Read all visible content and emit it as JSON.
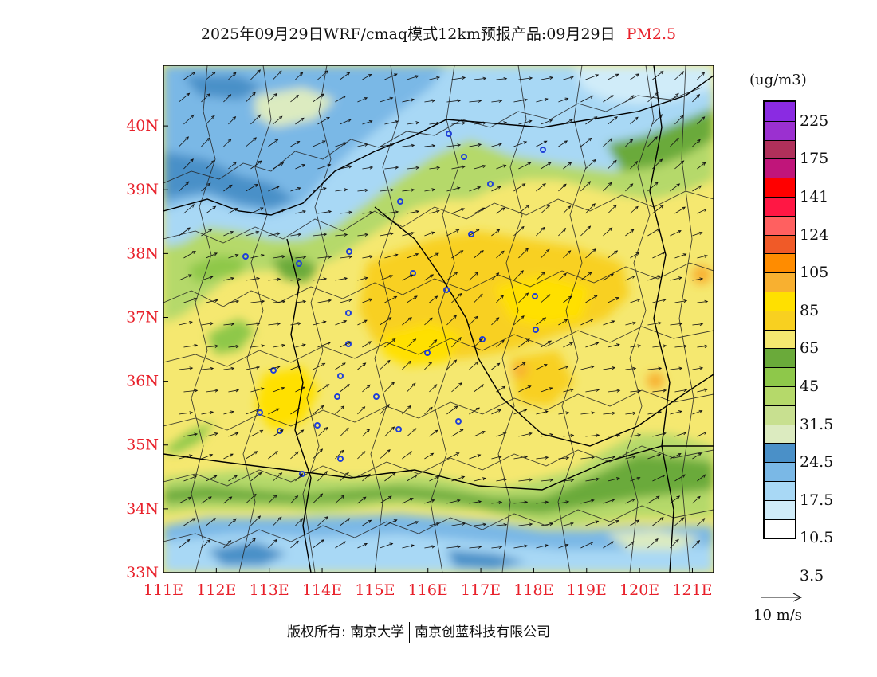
{
  "header": {
    "title": "2025年09月29日WRF/cmaq模式12km预报产品:09月29日",
    "pollutant": "PM2.5"
  },
  "map": {
    "lon_labels": [
      "111E",
      "112E",
      "113E",
      "114E",
      "115E",
      "116E",
      "117E",
      "118E",
      "119E",
      "120E",
      "121E"
    ],
    "lat_labels": [
      "40N",
      "39N",
      "38N",
      "37N",
      "36N",
      "35N",
      "34N",
      "33N"
    ],
    "lon_range": [
      111,
      121.4
    ],
    "lat_range": [
      33,
      40.95
    ],
    "wind_direction": "southwest to northeast"
  },
  "legend": {
    "unit": "(ug/m3)",
    "labels": [
      "225",
      "175",
      "141",
      "124",
      "105",
      "85",
      "65",
      "45",
      "31.5",
      "24.5",
      "17.5",
      "10.5",
      "3.5"
    ],
    "colors": [
      "#8a2be2",
      "#9b30d0",
      "#b0305a",
      "#c0157a",
      "#ff0000",
      "#ff1744",
      "#ff6060",
      "#f05a28",
      "#ff8c00",
      "#f8b030",
      "#ffe000",
      "#f8d020",
      "#f5e870",
      "#6aaa3a",
      "#8ec84a",
      "#b5d96a",
      "#c8e090",
      "#dcebc0",
      "#4a90c8",
      "#7ab8e6",
      "#a8d8f5",
      "#d0ecf9",
      "#ffffff"
    ]
  },
  "wind_key": {
    "label": "10 m/s"
  },
  "footer": {
    "left": "版权所有: 南京大学",
    "right": "南京创蓝科技有限公司"
  }
}
